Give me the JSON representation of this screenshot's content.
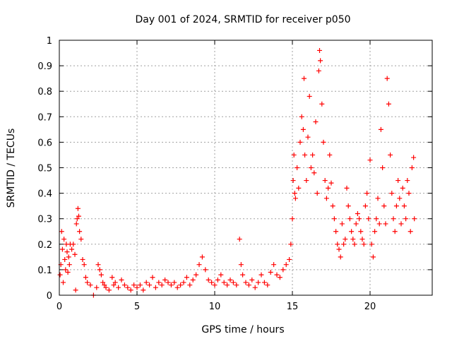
{
  "chart_data": {
    "type": "scatter",
    "title": "Day 001 of 2024, SRMTID for receiver p050",
    "xlabel": "GPS time / hours",
    "ylabel": "SRMTID / TECUs",
    "xlim": [
      0,
      24
    ],
    "ylim": [
      0,
      1
    ],
    "xticks": [
      0,
      5,
      10,
      15,
      20
    ],
    "yticks": [
      0,
      0.1,
      0.2,
      0.3,
      0.4,
      0.5,
      0.6,
      0.7,
      0.8,
      0.9,
      1
    ],
    "xtick_labels": [
      "0",
      "5",
      "10",
      "15",
      "20"
    ],
    "ytick_labels": [
      "0",
      "0.1",
      "0.2",
      "0.3",
      "0.4",
      "0.5",
      "0.6",
      "0.7",
      "0.8",
      "0.9",
      "1"
    ],
    "grid": true,
    "marker": "plus",
    "color": "#ff0000",
    "series": [
      {
        "name": "SRMTID",
        "points": [
          [
            0.05,
            0.08
          ],
          [
            0.1,
            0.12
          ],
          [
            0.15,
            0.25
          ],
          [
            0.2,
            0.18
          ],
          [
            0.25,
            0.05
          ],
          [
            0.3,
            0.22
          ],
          [
            0.35,
            0.14
          ],
          [
            0.4,
            0.1
          ],
          [
            0.45,
            0.2
          ],
          [
            0.5,
            0.17
          ],
          [
            0.55,
            0.09
          ],
          [
            0.6,
            0.15
          ],
          [
            0.65,
            0.12
          ],
          [
            0.7,
            0.2
          ],
          [
            0.8,
            0.18
          ],
          [
            0.9,
            0.2
          ],
          [
            1.0,
            0.16
          ],
          [
            1.05,
            0.02
          ],
          [
            1.1,
            0.28
          ],
          [
            1.15,
            0.3
          ],
          [
            1.2,
            0.34
          ],
          [
            1.25,
            0.31
          ],
          [
            1.3,
            0.25
          ],
          [
            1.4,
            0.22
          ],
          [
            1.5,
            0.14
          ],
          [
            1.6,
            0.12
          ],
          [
            1.7,
            0.07
          ],
          [
            1.8,
            0.05
          ],
          [
            2.0,
            0.04
          ],
          [
            2.2,
            0.0
          ],
          [
            2.4,
            0.03
          ],
          [
            2.5,
            0.12
          ],
          [
            2.6,
            0.1
          ],
          [
            2.7,
            0.08
          ],
          [
            2.8,
            0.05
          ],
          [
            2.9,
            0.04
          ],
          [
            3.0,
            0.03
          ],
          [
            3.2,
            0.02
          ],
          [
            3.4,
            0.07
          ],
          [
            3.5,
            0.04
          ],
          [
            3.6,
            0.05
          ],
          [
            3.8,
            0.03
          ],
          [
            4.0,
            0.06
          ],
          [
            4.2,
            0.04
          ],
          [
            4.4,
            0.03
          ],
          [
            4.6,
            0.02
          ],
          [
            4.8,
            0.04
          ],
          [
            5.0,
            0.03
          ],
          [
            5.2,
            0.04
          ],
          [
            5.4,
            0.02
          ],
          [
            5.6,
            0.05
          ],
          [
            5.8,
            0.04
          ],
          [
            6.0,
            0.07
          ],
          [
            6.2,
            0.03
          ],
          [
            6.4,
            0.05
          ],
          [
            6.6,
            0.04
          ],
          [
            6.8,
            0.06
          ],
          [
            7.0,
            0.05
          ],
          [
            7.2,
            0.04
          ],
          [
            7.4,
            0.05
          ],
          [
            7.6,
            0.03
          ],
          [
            7.8,
            0.04
          ],
          [
            8.0,
            0.05
          ],
          [
            8.2,
            0.07
          ],
          [
            8.4,
            0.04
          ],
          [
            8.6,
            0.06
          ],
          [
            8.8,
            0.08
          ],
          [
            9.0,
            0.12
          ],
          [
            9.2,
            0.15
          ],
          [
            9.4,
            0.1
          ],
          [
            9.6,
            0.06
          ],
          [
            9.8,
            0.05
          ],
          [
            10.0,
            0.04
          ],
          [
            10.2,
            0.06
          ],
          [
            10.4,
            0.08
          ],
          [
            10.6,
            0.05
          ],
          [
            10.8,
            0.04
          ],
          [
            11.0,
            0.06
          ],
          [
            11.2,
            0.05
          ],
          [
            11.4,
            0.04
          ],
          [
            11.6,
            0.22
          ],
          [
            11.7,
            0.12
          ],
          [
            11.8,
            0.08
          ],
          [
            12.0,
            0.05
          ],
          [
            12.2,
            0.04
          ],
          [
            12.4,
            0.06
          ],
          [
            12.6,
            0.03
          ],
          [
            12.8,
            0.05
          ],
          [
            13.0,
            0.08
          ],
          [
            13.2,
            0.05
          ],
          [
            13.4,
            0.04
          ],
          [
            13.6,
            0.09
          ],
          [
            13.8,
            0.12
          ],
          [
            14.0,
            0.08
          ],
          [
            14.2,
            0.07
          ],
          [
            14.4,
            0.1
          ],
          [
            14.6,
            0.12
          ],
          [
            14.8,
            0.14
          ],
          [
            14.9,
            0.2
          ],
          [
            15.0,
            0.3
          ],
          [
            15.05,
            0.45
          ],
          [
            15.1,
            0.55
          ],
          [
            15.15,
            0.4
          ],
          [
            15.2,
            0.38
          ],
          [
            15.3,
            0.5
          ],
          [
            15.4,
            0.42
          ],
          [
            15.5,
            0.6
          ],
          [
            15.6,
            0.7
          ],
          [
            15.7,
            0.65
          ],
          [
            15.75,
            0.85
          ],
          [
            15.8,
            0.55
          ],
          [
            15.9,
            0.45
          ],
          [
            16.0,
            0.62
          ],
          [
            16.1,
            0.78
          ],
          [
            16.2,
            0.5
          ],
          [
            16.3,
            0.55
          ],
          [
            16.4,
            0.48
          ],
          [
            16.5,
            0.68
          ],
          [
            16.6,
            0.4
          ],
          [
            16.7,
            0.88
          ],
          [
            16.75,
            0.96
          ],
          [
            16.8,
            0.92
          ],
          [
            16.9,
            0.75
          ],
          [
            17.0,
            0.6
          ],
          [
            17.1,
            0.45
          ],
          [
            17.2,
            0.38
          ],
          [
            17.3,
            0.42
          ],
          [
            17.4,
            0.55
          ],
          [
            17.5,
            0.44
          ],
          [
            17.6,
            0.35
          ],
          [
            17.7,
            0.3
          ],
          [
            17.8,
            0.25
          ],
          [
            17.9,
            0.2
          ],
          [
            18.0,
            0.18
          ],
          [
            18.1,
            0.15
          ],
          [
            18.2,
            0.28
          ],
          [
            18.3,
            0.2
          ],
          [
            18.4,
            0.22
          ],
          [
            18.5,
            0.42
          ],
          [
            18.6,
            0.35
          ],
          [
            18.7,
            0.3
          ],
          [
            18.8,
            0.25
          ],
          [
            18.9,
            0.22
          ],
          [
            19.0,
            0.2
          ],
          [
            19.1,
            0.28
          ],
          [
            19.2,
            0.32
          ],
          [
            19.3,
            0.3
          ],
          [
            19.4,
            0.25
          ],
          [
            19.5,
            0.22
          ],
          [
            19.6,
            0.2
          ],
          [
            19.7,
            0.35
          ],
          [
            19.8,
            0.4
          ],
          [
            19.9,
            0.3
          ],
          [
            20.0,
            0.53
          ],
          [
            20.1,
            0.2
          ],
          [
            20.2,
            0.15
          ],
          [
            20.3,
            0.25
          ],
          [
            20.4,
            0.3
          ],
          [
            20.5,
            0.38
          ],
          [
            20.6,
            0.28
          ],
          [
            20.7,
            0.65
          ],
          [
            20.8,
            0.5
          ],
          [
            20.9,
            0.35
          ],
          [
            21.0,
            0.28
          ],
          [
            21.1,
            0.85
          ],
          [
            21.2,
            0.75
          ],
          [
            21.3,
            0.55
          ],
          [
            21.4,
            0.4
          ],
          [
            21.5,
            0.3
          ],
          [
            21.6,
            0.25
          ],
          [
            21.7,
            0.35
          ],
          [
            21.8,
            0.45
          ],
          [
            21.9,
            0.38
          ],
          [
            22.0,
            0.28
          ],
          [
            22.1,
            0.42
          ],
          [
            22.2,
            0.35
          ],
          [
            22.3,
            0.3
          ],
          [
            22.4,
            0.45
          ],
          [
            22.5,
            0.4
          ],
          [
            22.6,
            0.25
          ],
          [
            22.7,
            0.5
          ],
          [
            22.8,
            0.54
          ],
          [
            22.85,
            0.3
          ]
        ]
      }
    ]
  }
}
